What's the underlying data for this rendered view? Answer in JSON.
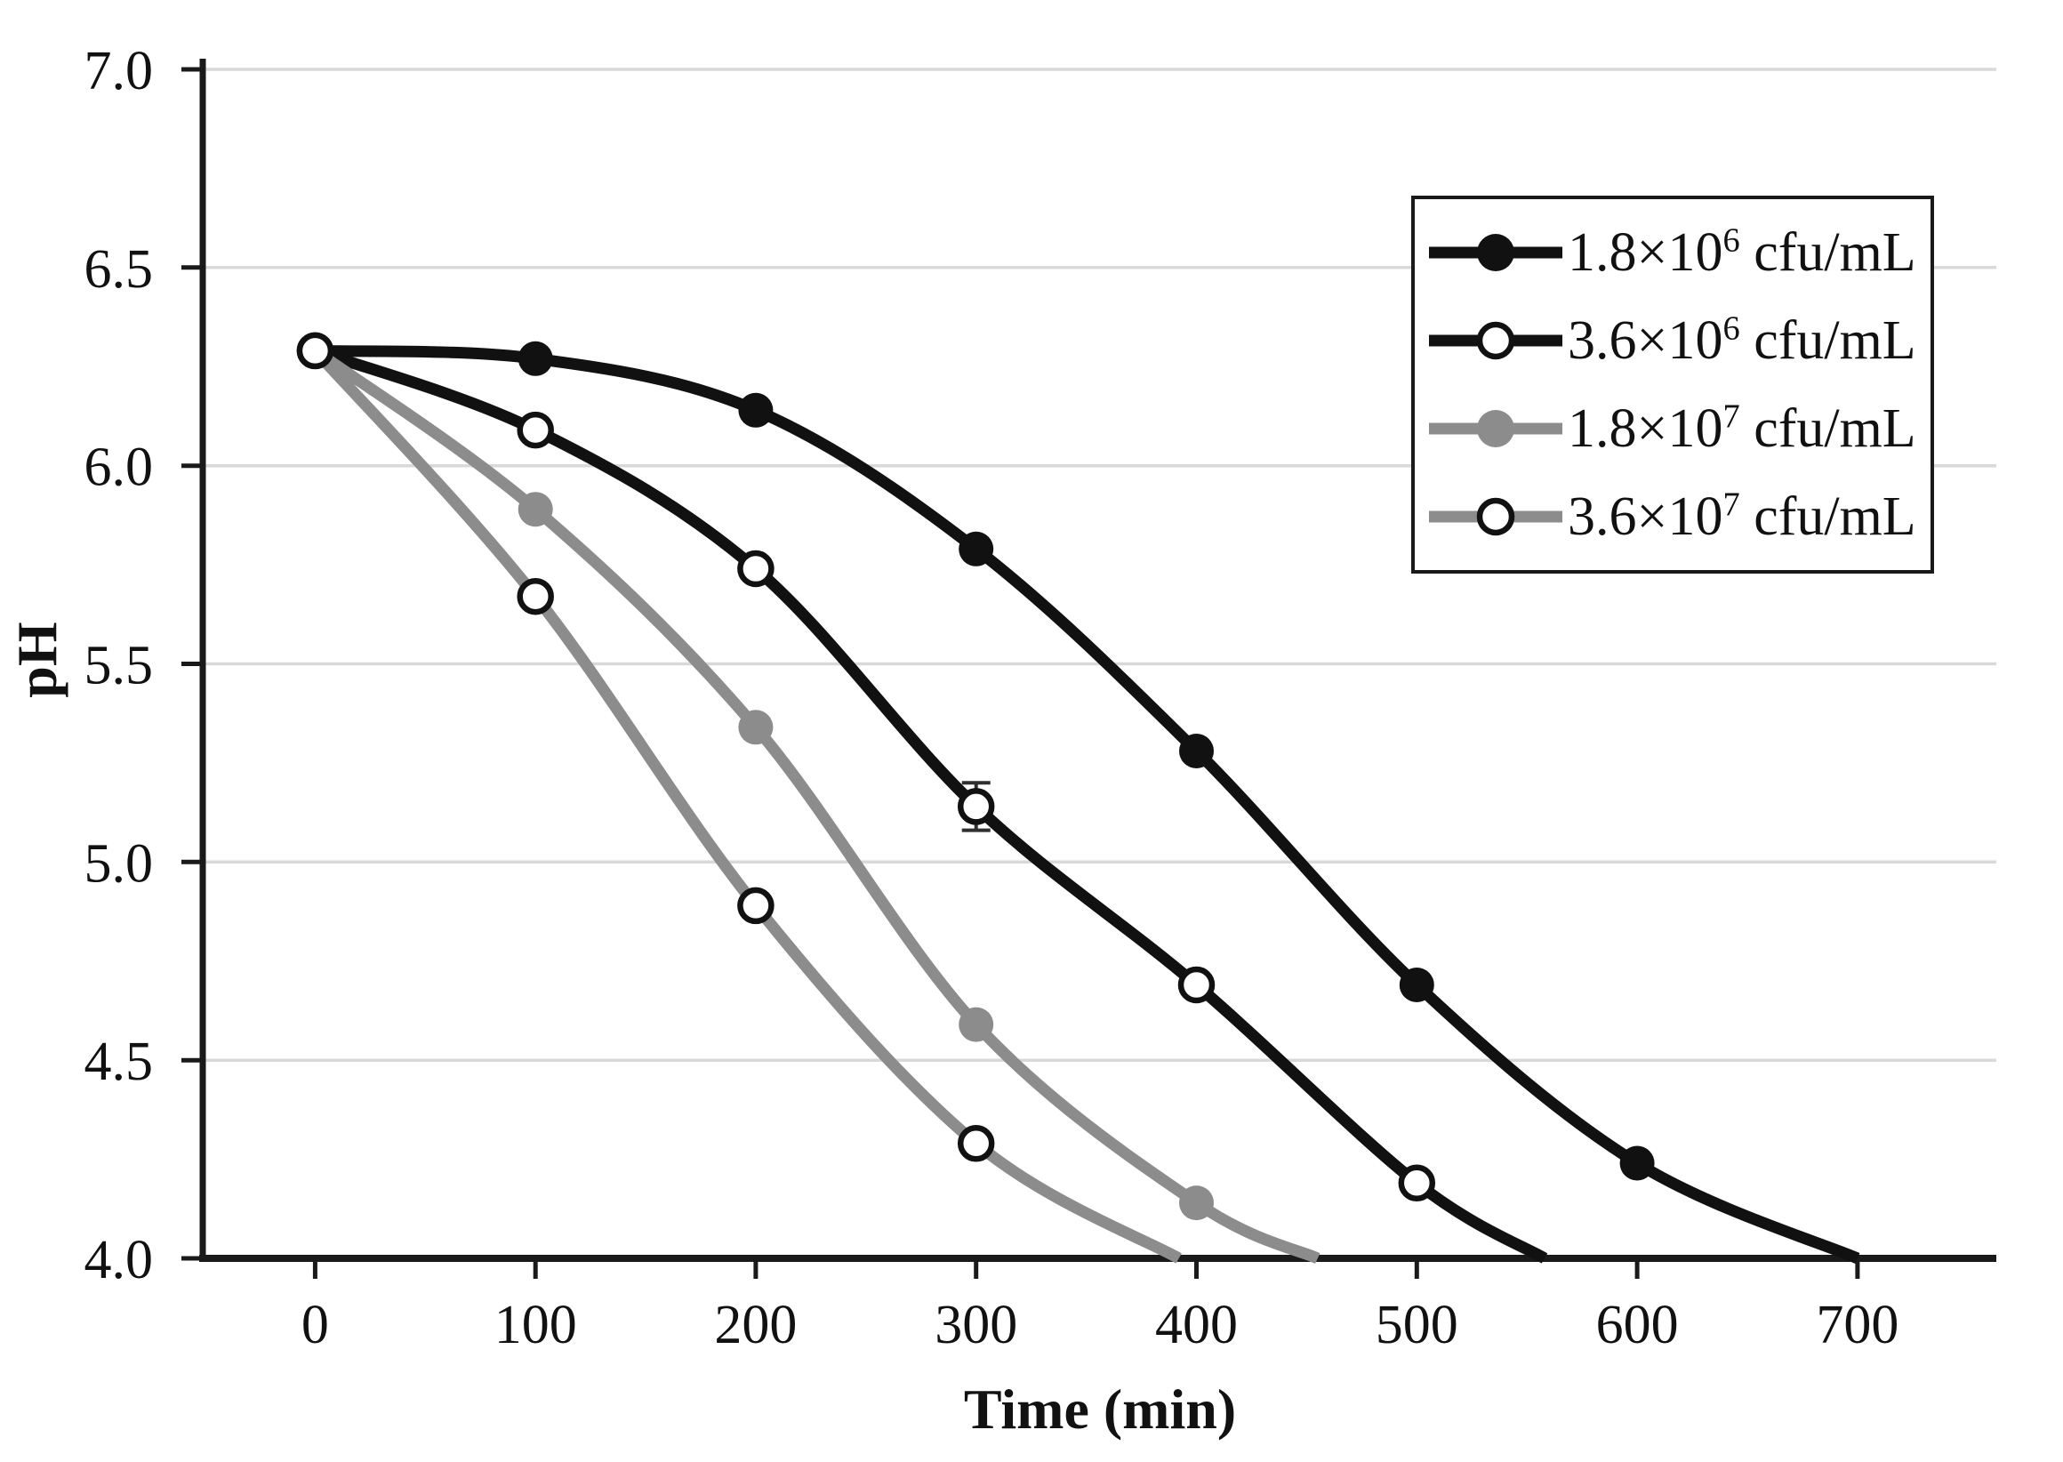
{
  "chart_data": {
    "type": "line",
    "title": "",
    "x_axis": {
      "label": "Time (min)",
      "ticks": [
        0,
        100,
        200,
        300,
        400,
        500,
        600,
        700
      ],
      "xlim": [
        -51,
        763
      ]
    },
    "y_axis": {
      "label": "pH",
      "ticks": [
        "7.0",
        "6.5",
        "6.0",
        "5.5",
        "5.0",
        "4.5",
        "4.0"
      ],
      "tick_values": [
        7.0,
        6.5,
        6.0,
        5.5,
        5.0,
        4.5,
        4.0
      ],
      "ylim": [
        4.0,
        7.0
      ],
      "gridlines": [
        7.0,
        6.5,
        6.0,
        5.5,
        5.0,
        4.5
      ]
    },
    "series": [
      {
        "name": "1.8×10⁶ cfu/mL",
        "label_prefix": "1.8×10",
        "label_exponent": "6",
        "label_suffix": " cfu/mL",
        "color": "#111111",
        "marker": "filled-circle",
        "points": [
          [
            0,
            6.29
          ],
          [
            100,
            6.27
          ],
          [
            200,
            6.14
          ],
          [
            300,
            5.79
          ],
          [
            400,
            5.28
          ],
          [
            500,
            4.69
          ],
          [
            600,
            4.24
          ],
          [
            700,
            4.0
          ]
        ]
      },
      {
        "name": "3.6×10⁶ cfu/mL",
        "label_prefix": "3.6×10",
        "label_exponent": "6",
        "label_suffix": " cfu/mL",
        "color": "#111111",
        "marker": "open-circle",
        "points": [
          [
            0,
            6.29
          ],
          [
            100,
            6.09
          ],
          [
            200,
            5.74
          ],
          [
            300,
            5.14
          ],
          [
            400,
            4.69
          ],
          [
            500,
            4.19
          ],
          [
            558,
            4.0
          ]
        ],
        "error_bar": {
          "x": 300,
          "y": 5.14,
          "plus_minus": 0.06
        }
      },
      {
        "name": "1.8×10⁷ cfu/mL",
        "label_prefix": "1.8×10",
        "label_exponent": "7",
        "label_suffix": " cfu/mL",
        "color": "#8c8c8c",
        "marker": "filled-circle",
        "points": [
          [
            0,
            6.29
          ],
          [
            100,
            5.89
          ],
          [
            200,
            5.34
          ],
          [
            300,
            4.59
          ],
          [
            400,
            4.14
          ],
          [
            455,
            4.0
          ]
        ]
      },
      {
        "name": "3.6×10⁷ cfu/mL",
        "label_prefix": "3.6×10",
        "label_exponent": "7",
        "label_suffix": " cfu/mL",
        "color": "#8c8c8c",
        "marker": "open-circle",
        "points": [
          [
            0,
            6.29
          ],
          [
            100,
            5.67
          ],
          [
            200,
            4.89
          ],
          [
            300,
            4.29
          ],
          [
            392,
            4.0
          ]
        ]
      }
    ],
    "legend": {
      "position": "top-right",
      "border": true
    },
    "notes": {
      "markers": "markers on all points except each curve's final axis-intercept point",
      "grid": "horizontal gridlines only, every 0.5 pH",
      "line_style": "smoothed curves"
    }
  },
  "colors": {
    "background": "#ffffff",
    "axis": "#1a1a1a",
    "gridline": "#d9d9d9",
    "black_series": "#111111",
    "gray_series": "#8c8c8c",
    "marker_open_fill": "#ffffff",
    "error_bar": "#2f2f2f"
  }
}
